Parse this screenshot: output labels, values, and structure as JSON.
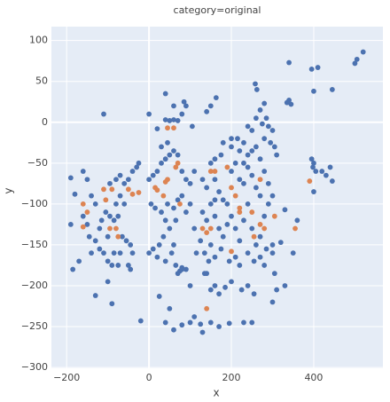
{
  "chart_data": {
    "type": "scatter",
    "title": "category=original",
    "x_label": "x",
    "y_label": "y",
    "xlim": [
      -237,
      568
    ],
    "ylim": [
      -301,
      117
    ],
    "xticks": [
      {
        "value": -200,
        "label": "−200"
      },
      0,
      200,
      400
    ],
    "yticks": [
      {
        "value": -300,
        "label": "−300"
      },
      {
        "value": -250,
        "label": "−250"
      },
      {
        "value": -200,
        "label": "−200"
      },
      {
        "value": -150,
        "label": "−150"
      },
      {
        "value": -100,
        "label": "−100"
      },
      {
        "value": -50,
        "label": "−50"
      },
      0,
      50,
      100
    ],
    "grid": true,
    "series": [
      {
        "color": "#4c72b0",
        "x": [
          520,
          505,
          500,
          410,
          395,
          340,
          445,
          400,
          340,
          345,
          335,
          40,
          60,
          85,
          90,
          80,
          40,
          50,
          60,
          70,
          20,
          105,
          150,
          163,
          140,
          258,
          262,
          280,
          270,
          285,
          290,
          300,
          280,
          295,
          305,
          310,
          270,
          250,
          230,
          200,
          180,
          215,
          175,
          160,
          -110,
          0,
          395,
          400,
          398,
          405,
          400,
          420,
          430,
          445,
          440,
          330,
          360,
          350,
          300,
          320,
          330,
          305,
          310,
          300,
          -100,
          -90,
          -130,
          -20,
          25,
          50,
          40,
          60,
          80,
          100,
          110,
          125,
          130,
          150,
          170,
          195,
          230,
          250,
          185,
          200,
          225,
          100,
          135,
          145,
          90,
          80,
          70,
          -190,
          -180,
          -190,
          -185,
          -170,
          -160,
          -150,
          -140,
          -130,
          -160,
          -150,
          -145,
          -140,
          -120,
          -110,
          -100,
          -115,
          -105,
          -95,
          -85,
          -75,
          -95,
          -80,
          -70,
          -60,
          -50,
          -40,
          -30,
          -25,
          -70,
          -60,
          -80,
          -65,
          -55,
          -45,
          -40,
          -50,
          -45,
          -70,
          -85,
          -90,
          -75,
          -120,
          -130,
          -100,
          0,
          10,
          20,
          30,
          40,
          50,
          60,
          30,
          45,
          70,
          80,
          90,
          100,
          110,
          5,
          15,
          30,
          40,
          50,
          35,
          25,
          10,
          0,
          20,
          40,
          55,
          60,
          45,
          60,
          70,
          65,
          80,
          90,
          100,
          65,
          75,
          80,
          130,
          140,
          150,
          160,
          170,
          180,
          190,
          200,
          210,
          220,
          230,
          240,
          250,
          260,
          270,
          280,
          290,
          130,
          140,
          150,
          160,
          170,
          180,
          190,
          200,
          210,
          220,
          230,
          240,
          250,
          260,
          270,
          280,
          290,
          300,
          240,
          255,
          270,
          285,
          150,
          160,
          175,
          135,
          125,
          210,
          220,
          195,
          200,
          220,
          240,
          260,
          250,
          240,
          260,
          275,
          230,
          160,
          140,
          160,
          150,
          170,
          240,
          255,
          280,
          300,
          115,
          110
        ],
        "y": [
          86,
          77,
          72,
          67,
          65,
          73,
          40,
          38,
          27,
          22,
          24,
          35,
          20,
          25,
          20,
          10,
          3,
          2,
          3,
          2,
          -8,
          -5,
          20,
          30,
          13,
          47,
          40,
          23,
          15,
          5,
          -5,
          -10,
          -20,
          -25,
          -30,
          -40,
          -45,
          -35,
          -25,
          -20,
          -25,
          -20,
          -40,
          -45,
          10,
          10,
          -45,
          -50,
          -55,
          -60,
          -85,
          -60,
          -65,
          -72,
          -55,
          -107,
          -120,
          -160,
          -160,
          -147,
          -200,
          -185,
          -205,
          -220,
          -195,
          -222,
          -212,
          -243,
          -213,
          -228,
          -245,
          -254,
          -248,
          -245,
          -238,
          -247,
          -257,
          -245,
          -250,
          -246,
          -245,
          -245,
          -202,
          -195,
          -205,
          -200,
          -185,
          -170,
          -180,
          -180,
          -185,
          -68,
          -88,
          -125,
          -180,
          -170,
          -60,
          -70,
          -90,
          -100,
          -115,
          -125,
          -140,
          -160,
          -155,
          -160,
          -170,
          -120,
          -110,
          -115,
          -120,
          -115,
          -75,
          -70,
          -65,
          -75,
          -70,
          -60,
          -55,
          -50,
          -90,
          -100,
          -100,
          -140,
          -145,
          -150,
          -160,
          -175,
          -180,
          -160,
          -160,
          -175,
          -175,
          -130,
          -145,
          -140,
          -70,
          -65,
          -60,
          -50,
          -45,
          -40,
          -35,
          -30,
          -25,
          -40,
          -60,
          -70,
          -75,
          -60,
          -100,
          -105,
          -110,
          -120,
          -130,
          -140,
          -150,
          -155,
          -160,
          -165,
          -170,
          -160,
          -150,
          -100,
          -105,
          -95,
          -120,
          -90,
          -110,
          -100,
          -175,
          -182,
          -178,
          -70,
          -80,
          -50,
          -70,
          -85,
          -95,
          -100,
          -60,
          -50,
          -70,
          -75,
          -55,
          -65,
          -80,
          -90,
          -60,
          -75,
          -110,
          -120,
          -100,
          -115,
          -130,
          -140,
          -125,
          -115,
          -130,
          -145,
          -120,
          -100,
          -130,
          -150,
          -140,
          -115,
          -100,
          -90,
          -160,
          -170,
          -165,
          -155,
          -150,
          -165,
          -155,
          -160,
          -145,
          -165,
          -175,
          -170,
          -30,
          -35,
          -40,
          -30,
          -10,
          -5,
          5,
          -2,
          -50,
          -95,
          -185,
          -200,
          -205,
          -210,
          -200,
          -210,
          -175,
          -150,
          -160,
          -130
        ]
      },
      {
        "color": "#dd8452",
        "x": [
          -160,
          -150,
          -160,
          -110,
          -105,
          -90,
          -95,
          -80,
          -75,
          -50,
          -40,
          -25,
          15,
          20,
          40,
          45,
          45,
          60,
          65,
          70,
          75,
          35,
          130,
          140,
          150,
          140,
          150,
          160,
          190,
          200,
          220,
          210,
          250,
          270,
          255,
          270,
          280,
          220,
          200,
          305,
          355,
          390
        ],
        "y": [
          -100,
          -110,
          -128,
          -82,
          -95,
          -82,
          -130,
          -130,
          -140,
          -82,
          -88,
          -86,
          -80,
          -83,
          -73,
          -70,
          -7,
          -7,
          -55,
          -50,
          -100,
          -90,
          -130,
          -135,
          -130,
          -228,
          -60,
          -60,
          -55,
          -80,
          -110,
          -90,
          -110,
          -125,
          -140,
          -70,
          -130,
          -105,
          -158,
          -115,
          -130,
          -72
        ]
      }
    ]
  }
}
